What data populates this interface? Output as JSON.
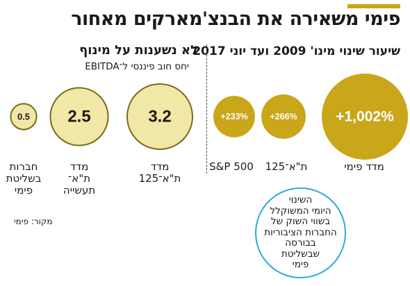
{
  "title": "פימי משאירה את הבנצ'מארקים מאחור",
  "left_panel": {
    "heading": "לא נשענות על מינוף",
    "note": "יחס חוב פיננסי ל־EBITDA"
  },
  "right_panel": {
    "heading": "שיעור שינוי מינו' 2009 ועד יוני 2017"
  },
  "colors": {
    "accent": "#c9a61a",
    "gold": "#c9a61a",
    "pale": "#f1e7a6",
    "callout_border": "#2fa8e0"
  },
  "chart_data": [
    {
      "type": "bubble",
      "title": "לא נשענות על מינוף",
      "subtitle": "יחס חוב פיננסי ל־EBITDA",
      "categories": [
        "מדד ת\"א־125",
        "מדד ת\"א־ תעשייה",
        "חברות בשליטת פימי"
      ],
      "values": [
        3.2,
        2.5,
        0.5
      ],
      "labels": [
        "3.2",
        "2.5",
        "0.5"
      ]
    },
    {
      "type": "bubble",
      "title": "שיעור שינוי מינו' 2009 ועד יוני 2017",
      "categories": [
        "מדד פימי",
        "ת\"א־125",
        "S&P 500"
      ],
      "values": [
        1002,
        266,
        233
      ],
      "labels": [
        "+1,002%",
        "+266%",
        "+233%"
      ]
    }
  ],
  "captions": {
    "left": [
      [
        "מדד",
        "ת\"א־125"
      ],
      [
        "מדד",
        "ת\"א־",
        "תעשייה"
      ],
      [
        "חברות",
        "בשליטת",
        "פימי"
      ]
    ],
    "right": [
      [
        "מדד פימי"
      ],
      [
        "ת\"א־125"
      ],
      [
        "S&P 500"
      ]
    ]
  },
  "source": "מקור: פימי",
  "callout": [
    "השינוי",
    "היומי המשוקלל",
    "בשווי השוק של",
    "החברות הציבוריות",
    "בבורסה",
    "שבשליטת",
    "פימי"
  ]
}
